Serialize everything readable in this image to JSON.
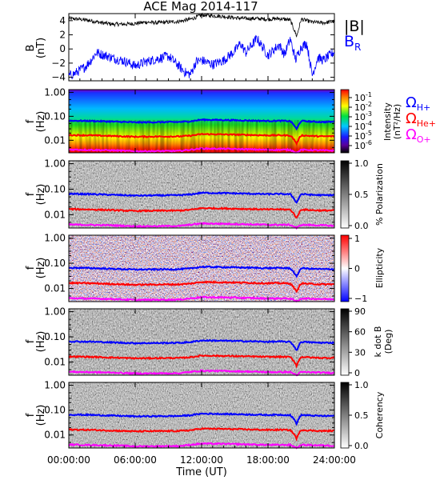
{
  "title": "ACE Mag 2014-117",
  "xlabel": "Time (UT)",
  "x_ticks": [
    "00:00:00",
    "06:00:00",
    "12:00:00",
    "18:00:00",
    "24:00:00"
  ],
  "legend_B": {
    "total": "|B|",
    "radial_main": "B",
    "radial_sub": "R",
    "total_color": "#000000",
    "radial_color": "#0000ff"
  },
  "legend_omega": [
    {
      "symbol": "Ω",
      "sub": "H+",
      "color": "#0000ff"
    },
    {
      "symbol": "Ω",
      "sub": "He+",
      "color": "#ff0000"
    },
    {
      "symbol": "Ω",
      "sub": "O+",
      "color": "#ff00ff"
    }
  ],
  "panel_ylabel_f": {
    "main": "f",
    "unit": "(Hz)"
  },
  "freq_ticks": [
    "1.00",
    "0.10",
    "0.01"
  ],
  "colorbars": [
    {
      "name": "intensity",
      "label": "Intensity",
      "unit": "(nT²/Hz)",
      "scheme": "rainbow",
      "ticks": [
        {
          "m": "10",
          "e": "-1"
        },
        {
          "m": "10",
          "e": "-2"
        },
        {
          "m": "10",
          "e": "-3"
        },
        {
          "m": "10",
          "e": "-4"
        },
        {
          "m": "10",
          "e": "-5"
        },
        {
          "m": "10",
          "e": "-6"
        }
      ]
    },
    {
      "name": "polarization",
      "label": "% Polarization",
      "unit": "",
      "scheme": "gray",
      "ticks": [
        "1.0",
        "0.5",
        "0.0"
      ]
    },
    {
      "name": "ellipticity",
      "label": "Ellipticity",
      "unit": "",
      "scheme": "bwr",
      "ticks": [
        "1",
        "0",
        "−1"
      ]
    },
    {
      "name": "kdotb",
      "label": "k dot B",
      "unit": "(Deg)",
      "scheme": "gray",
      "ticks": [
        "90",
        "60",
        "30",
        "0"
      ]
    },
    {
      "name": "coherency",
      "label": "Coherency",
      "unit": "",
      "scheme": "gray",
      "ticks": [
        "1.0",
        "0.5",
        "0.0"
      ]
    }
  ],
  "chart_data": {
    "type": "line",
    "x_unit": "hours UT",
    "xlim": [
      0,
      24
    ],
    "top_panel": {
      "ylabel": "B",
      "yunit": "(nT)",
      "ylim": [
        -4.5,
        5
      ],
      "yticks": [
        "4",
        "2",
        "0",
        "−2",
        "−4"
      ],
      "series": [
        {
          "name": "|B|",
          "color": "#000000",
          "x": [
            0,
            1,
            2,
            3,
            4,
            5,
            6,
            7,
            8,
            9,
            10,
            11,
            12,
            13,
            14,
            15,
            16,
            17,
            18,
            19,
            20,
            20.6,
            21,
            21.5,
            22,
            23,
            24
          ],
          "y": [
            4.3,
            4.2,
            4.0,
            3.7,
            3.5,
            3.5,
            3.6,
            3.8,
            3.7,
            3.8,
            3.9,
            4.2,
            4.8,
            4.7,
            4.6,
            4.4,
            4.3,
            4.3,
            4.2,
            4.3,
            4.1,
            1.8,
            4.2,
            4.0,
            3.8,
            3.7,
            3.9
          ]
        },
        {
          "name": "B",
          "color": "#0000ff",
          "x": [
            0,
            0.5,
            1,
            1.5,
            2,
            2.5,
            3,
            3.5,
            4,
            5,
            6,
            7,
            8,
            9,
            10,
            10.5,
            11,
            11.5,
            12,
            13,
            14,
            15,
            15.5,
            16,
            17,
            18,
            19,
            19.5,
            20,
            20.5,
            21,
            21.5,
            22,
            22.5,
            23,
            24
          ],
          "y": [
            -3.8,
            -3.5,
            -3.0,
            -2.5,
            -1.6,
            -0.5,
            -0.8,
            -1.0,
            -1.3,
            -1.7,
            -2.4,
            -1.8,
            -1.4,
            -1.0,
            -2.5,
            -3.3,
            -3.6,
            -1.8,
            -1.6,
            -2.2,
            -1.6,
            -0.3,
            0.8,
            -0.5,
            1.5,
            -0.9,
            0.6,
            -0.8,
            1.4,
            -1.5,
            0.3,
            0.8,
            -3.7,
            -1.2,
            -1.6,
            -0.4
          ]
        }
      ]
    },
    "spectra_panels": {
      "ylim_hz": [
        0.003,
        1.3
      ],
      "cyclotron_lines": [
        {
          "name": "Ω H+",
          "color": "#0000ff",
          "x": [
            0,
            2,
            4,
            6,
            8,
            10,
            11,
            12,
            13,
            14,
            16,
            18,
            19,
            20,
            20.6,
            21,
            22,
            23,
            24
          ],
          "y": [
            0.066,
            0.064,
            0.06,
            0.056,
            0.057,
            0.058,
            0.062,
            0.072,
            0.071,
            0.07,
            0.067,
            0.064,
            0.065,
            0.063,
            0.028,
            0.064,
            0.06,
            0.058,
            0.059
          ]
        },
        {
          "name": "Ω He+",
          "color": "#ff0000",
          "x": [
            0,
            2,
            4,
            6,
            8,
            10,
            11,
            12,
            13,
            14,
            16,
            18,
            19,
            20,
            20.6,
            21,
            22,
            23,
            24
          ],
          "y": [
            0.0165,
            0.016,
            0.015,
            0.014,
            0.0143,
            0.0145,
            0.0155,
            0.018,
            0.0178,
            0.0175,
            0.0168,
            0.016,
            0.0162,
            0.0158,
            0.007,
            0.016,
            0.015,
            0.0145,
            0.0148
          ]
        },
        {
          "name": "Ω O+",
          "color": "#ff00ff",
          "x": [
            0,
            4,
            6,
            10,
            12,
            14,
            18,
            20,
            20.6,
            21,
            24
          ],
          "y": [
            0.0041,
            0.0038,
            0.0035,
            0.0036,
            0.0045,
            0.0044,
            0.004,
            0.004,
            0.003,
            0.004,
            0.0037
          ]
        }
      ]
    }
  }
}
